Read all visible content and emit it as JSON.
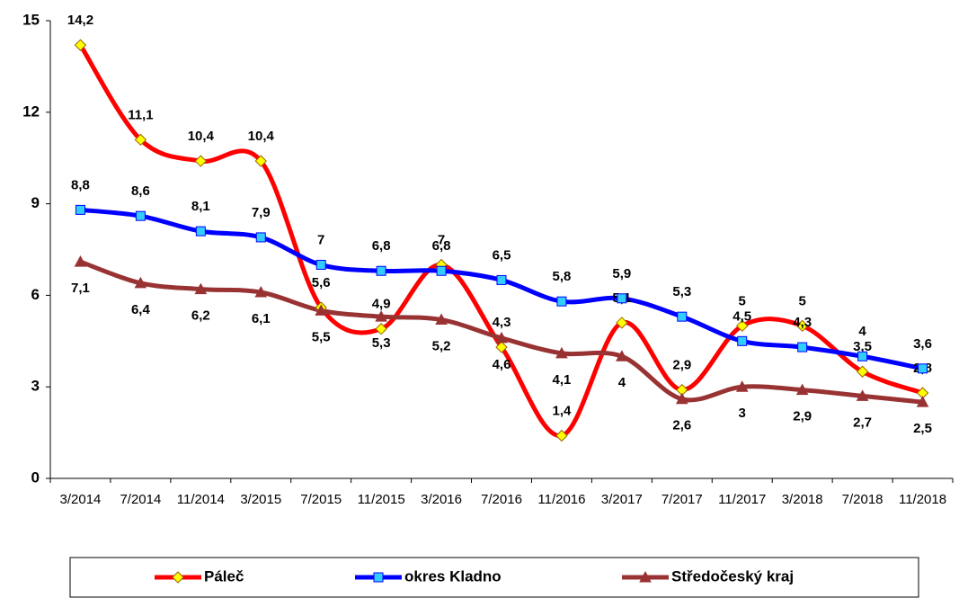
{
  "chart_data": {
    "type": "line",
    "categories": [
      "3/2014",
      "7/2014",
      "11/2014",
      "3/2015",
      "7/2015",
      "11/2015",
      "3/2016",
      "7/2016",
      "11/2016",
      "3/2017",
      "7/2017",
      "11/2017",
      "3/2018",
      "7/2018",
      "11/2018"
    ],
    "series": [
      {
        "name": "Páleč",
        "color": "#ff0000",
        "marker_color": "#ffff00",
        "values": [
          14.2,
          11.1,
          10.4,
          10.4,
          5.6,
          4.9,
          7,
          4.3,
          1.4,
          5.1,
          2.9,
          5,
          5,
          3.5,
          2.8
        ],
        "value_labels": [
          "14,2",
          "11,1",
          "10,4",
          "10,4",
          "5,6",
          "4,9",
          "7",
          "4,3",
          "1,4",
          "5,1",
          "2,9",
          "5",
          "5",
          "3,5",
          "2,8"
        ]
      },
      {
        "name": "okres Kladno",
        "color": "#0000ff",
        "marker_color": "#33ccff",
        "values": [
          8.8,
          8.6,
          8.1,
          7.9,
          7,
          6.8,
          6.8,
          6.5,
          5.8,
          5.9,
          5.3,
          4.5,
          4.3,
          4,
          3.6
        ],
        "value_labels": [
          "8,8",
          "8,6",
          "8,1",
          "7,9",
          "7",
          "6,8",
          "6,8",
          "6,5",
          "5,8",
          "5,9",
          "5,3",
          "4,5",
          "4,3",
          "4",
          "3,6"
        ]
      },
      {
        "name": "Středočeský kraj",
        "color": "#993333",
        "marker_color": "#993333",
        "values": [
          7.1,
          6.4,
          6.2,
          6.1,
          5.5,
          5.3,
          5.2,
          4.6,
          4.1,
          4,
          2.6,
          3,
          2.9,
          2.7,
          2.5
        ],
        "value_labels": [
          "7,1",
          "6,4",
          "6,2",
          "6,1",
          "5,5",
          "5,3",
          "5,2",
          "4,6",
          "4,1",
          "4",
          "2,6",
          "3",
          "2,9",
          "2,7",
          "2,5"
        ]
      }
    ],
    "ylim": [
      0,
      15
    ],
    "yticks": [
      0,
      3,
      6,
      9,
      12,
      15
    ],
    "grid": false,
    "legend": "bottom"
  }
}
